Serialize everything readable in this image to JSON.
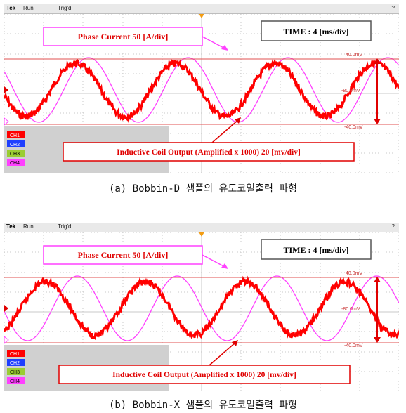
{
  "panels": [
    {
      "id": "a",
      "scope": {
        "brand": "Tek",
        "state": "Run",
        "trigger": "Trig'd"
      },
      "phase_label": "Phase Current  50 [A/div]",
      "time_label": "TIME   :  4 [ms/div]",
      "coil_label": "Inductive  Coil Output  (Amplified  x 1000)  20 [mv/div]",
      "level_top": "40.0mV",
      "level_mid": "-80.0mV",
      "level_bot": "-40.0mV",
      "channels": [
        "CH1",
        "CH2",
        "CH3",
        "CH4"
      ],
      "caption": "(a) Bobbin-D 샘플의 유도코일출력 파형",
      "red_phase": 0.2,
      "magenta_phase": -0.6
    },
    {
      "id": "b",
      "scope": {
        "brand": "Tek",
        "state": "Run",
        "trigger": "Trig'd"
      },
      "phase_label": "Phase Current  50 [A/div]",
      "time_label": "TIME   :  4 [ms/div]",
      "coil_label": "Inductive  Coil Output  (Amplified  x 1000)  20 [mv/div]",
      "level_top": "40.0mV",
      "level_mid": "-80.0mV",
      "level_bot": "-40.0mV",
      "channels": [
        "CH1",
        "CH2",
        "CH3",
        "CH4"
      ],
      "caption": "(b) Bobbin-X 샘플의 유도코일출력 파형",
      "red_phase": 2.1,
      "magenta_phase": 0.1
    }
  ],
  "colors": {
    "screen": "#ffffff",
    "grid": "#c8c8c8",
    "coil_trace": "#ff0000",
    "phase_trace": "#ff40ff",
    "label_text": "#e00000",
    "ch1": "#ff0000",
    "ch2": "#1f3fff",
    "ch3": "#9acd32",
    "ch4": "#ff40ff"
  }
}
